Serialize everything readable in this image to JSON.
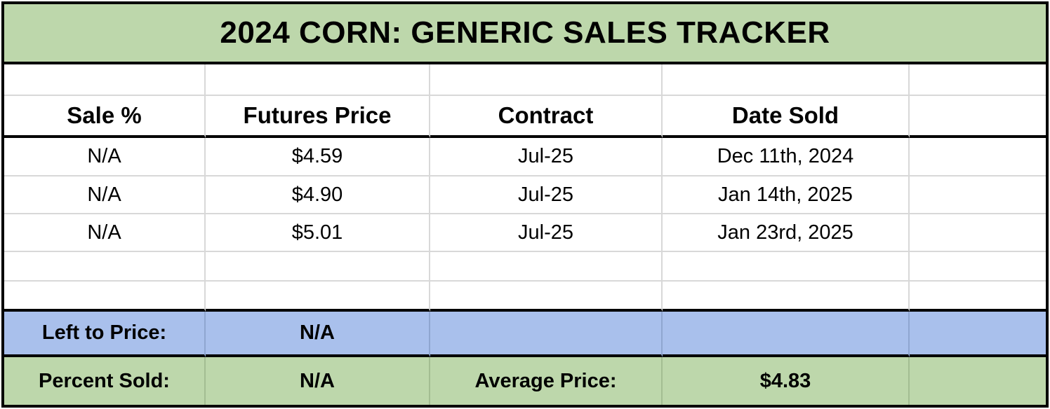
{
  "title": "2024 CORN: GENERIC SALES TRACKER",
  "colors": {
    "title_green": "#bdd7ab",
    "summary_blue": "#a9c0ec",
    "summary_green": "#bdd7ab",
    "grid_line": "#d8d8d8",
    "border": "#000000"
  },
  "table": {
    "columns": [
      "Sale %",
      "Futures Price",
      "Contract",
      "Date Sold",
      ""
    ],
    "rows": [
      {
        "sale_pct": "N/A",
        "futures_price": "$4.59",
        "contract": "Jul-25",
        "date_sold": "Dec 11th, 2024"
      },
      {
        "sale_pct": "N/A",
        "futures_price": "$4.90",
        "contract": "Jul-25",
        "date_sold": "Jan 14th, 2025"
      },
      {
        "sale_pct": "N/A",
        "futures_price": "$5.01",
        "contract": "Jul-25",
        "date_sold": "Jan 23rd, 2025"
      }
    ]
  },
  "summary": {
    "left_to_price_label": "Left to Price:",
    "left_to_price_value": "N/A",
    "percent_sold_label": "Percent Sold:",
    "percent_sold_value": "N/A",
    "average_price_label": "Average Price:",
    "average_price_value": "$4.83"
  }
}
